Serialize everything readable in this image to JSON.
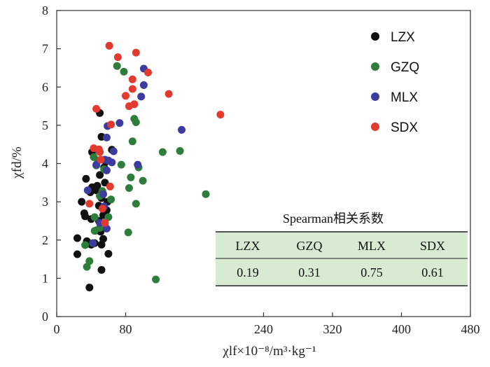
{
  "chart_data": {
    "type": "scatter",
    "xlabel": "χlf×10⁻⁸/m³·kg⁻¹",
    "ylabel": "χfd/%",
    "xlim": [
      0,
      480
    ],
    "ylim": [
      0,
      8
    ],
    "xticks": [
      0,
      80,
      240,
      320,
      400,
      480
    ],
    "yticks": [
      0,
      1,
      2,
      3,
      4,
      5,
      6,
      7,
      8
    ],
    "legend_position": "top-right",
    "series": [
      {
        "name": "LZX",
        "color": "#111111",
        "points": [
          [
            24,
            2.05
          ],
          [
            24,
            1.63
          ],
          [
            29,
            3.0
          ],
          [
            33,
            2.62
          ],
          [
            32,
            2.7
          ],
          [
            34,
            3.6
          ],
          [
            35,
            1.97
          ],
          [
            36,
            1.94
          ],
          [
            38,
            0.76
          ],
          [
            39,
            3.25
          ],
          [
            40,
            2.55
          ],
          [
            40,
            1.88
          ],
          [
            41,
            3.38
          ],
          [
            41,
            4.3
          ],
          [
            44,
            1.92
          ],
          [
            46,
            2.25
          ],
          [
            46,
            3.3
          ],
          [
            47,
            3.42
          ],
          [
            49,
            2.5
          ],
          [
            49,
            2.9
          ],
          [
            50,
            3.7
          ],
          [
            51,
            2.22
          ],
          [
            52,
            1.22
          ],
          [
            52,
            1.88
          ],
          [
            52,
            3.1
          ],
          [
            52,
            4.7
          ],
          [
            50,
            5.32
          ],
          [
            54,
            2.03
          ],
          [
            54,
            2.65
          ],
          [
            55,
            3.9
          ],
          [
            56,
            3.5
          ],
          [
            57,
            4.05
          ],
          [
            58,
            2.78
          ],
          [
            59,
            3.0
          ],
          [
            60,
            1.64
          ],
          [
            64,
            4.36
          ]
        ]
      },
      {
        "name": "GZQ",
        "color": "#2e7d3a",
        "points": [
          [
            33,
            1.87
          ],
          [
            35,
            1.3
          ],
          [
            38,
            1.45
          ],
          [
            43,
            4.17
          ],
          [
            44,
            2.24
          ],
          [
            44,
            2.6
          ],
          [
            46,
            3.95
          ],
          [
            48,
            4.08
          ],
          [
            50,
            2.32
          ],
          [
            50,
            3.15
          ],
          [
            53,
            3.28
          ],
          [
            55,
            3.85
          ],
          [
            60,
            2.6
          ],
          [
            63,
            3.06
          ],
          [
            70,
            6.55
          ],
          [
            75,
            3.97
          ],
          [
            78,
            6.4
          ],
          [
            83,
            2.2
          ],
          [
            84,
            3.36
          ],
          [
            86,
            3.64
          ],
          [
            88,
            4.58
          ],
          [
            90,
            5.17
          ],
          [
            92,
            5.08
          ],
          [
            92,
            2.95
          ],
          [
            95,
            3.9
          ],
          [
            100,
            3.55
          ],
          [
            115,
            0.97
          ],
          [
            123,
            4.3
          ],
          [
            143,
            4.33
          ],
          [
            173,
            3.2
          ]
        ]
      },
      {
        "name": "MLX",
        "color": "#3c3c9e",
        "points": [
          [
            36,
            3.3
          ],
          [
            42,
            1.92
          ],
          [
            46,
            3.97
          ],
          [
            48,
            4.35
          ],
          [
            50,
            2.45
          ],
          [
            54,
            3.2
          ],
          [
            55,
            2.88
          ],
          [
            56,
            4.1
          ],
          [
            58,
            2.3
          ],
          [
            58,
            3.82
          ],
          [
            58,
            4.68
          ],
          [
            59,
            4.98
          ],
          [
            60,
            4.08
          ],
          [
            64,
            4.03
          ],
          [
            66,
            4.32
          ],
          [
            73,
            5.06
          ],
          [
            94,
            3.97
          ],
          [
            98,
            5.75
          ],
          [
            101,
            6.05
          ],
          [
            101,
            6.48
          ],
          [
            145,
            4.88
          ]
        ]
      },
      {
        "name": "SDX",
        "color": "#e23a2e",
        "points": [
          [
            38,
            2.95
          ],
          [
            43,
            4.4
          ],
          [
            46,
            5.43
          ],
          [
            49,
            4.37
          ],
          [
            50,
            4.3
          ],
          [
            51,
            4.1
          ],
          [
            53,
            2.82
          ],
          [
            56,
            2.45
          ],
          [
            62,
            3.4
          ],
          [
            63,
            5.02
          ],
          [
            61,
            7.08
          ],
          [
            71,
            6.78
          ],
          [
            80,
            5.77
          ],
          [
            84,
            5.5
          ],
          [
            88,
            6.2
          ],
          [
            88,
            5.95
          ],
          [
            90,
            5.55
          ],
          [
            92,
            6.9
          ],
          [
            106,
            6.38
          ],
          [
            130,
            5.82
          ],
          [
            190,
            5.28
          ]
        ]
      }
    ],
    "table": {
      "title": "Spearman相关系数",
      "headers": [
        "LZX",
        "GZQ",
        "MLX",
        "SDX"
      ],
      "values": [
        "0.19",
        "0.31",
        "0.75",
        "0.61"
      ]
    }
  },
  "colors": {
    "table_fill": "#d8ead2",
    "axis": "#333333"
  }
}
